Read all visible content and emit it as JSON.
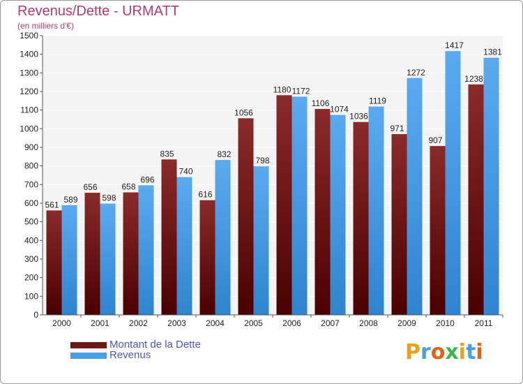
{
  "header": {
    "title": "Revenus/Dette - URMATT",
    "subtitle": "(en milliers d'€)"
  },
  "colors": {
    "dette": "#6e1818",
    "revenus": "#4a9fe3",
    "title": "#b23a74",
    "legend_text": "#4a55cc"
  },
  "legend": {
    "items": [
      {
        "label": "Montant de la Dette",
        "color": "#6e1818"
      },
      {
        "label": "Revenus",
        "color": "#4a9fe3"
      }
    ]
  },
  "logo": {
    "text": "Proxiti",
    "letter_colors": [
      "#e8a020",
      "#4a9fe3",
      "#e86010",
      "#3cb54a",
      "#e8a020",
      "#4a9fe3",
      "#e86010"
    ]
  },
  "chart_data": {
    "type": "bar",
    "title": "Revenus/Dette - URMATT",
    "subtitle": "(en milliers d'€)",
    "categories": [
      "2000",
      "2001",
      "2002",
      "2003",
      "2004",
      "2005",
      "2006",
      "2007",
      "2008",
      "2009",
      "2010",
      "2011"
    ],
    "series": [
      {
        "name": "Montant de la Dette",
        "values": [
          561,
          656,
          658,
          835,
          616,
          1056,
          1180,
          1106,
          1036,
          971,
          907,
          1238
        ]
      },
      {
        "name": "Revenus",
        "values": [
          589,
          598,
          696,
          740,
          832,
          798,
          1172,
          1074,
          1119,
          1272,
          1417,
          1381
        ]
      }
    ],
    "ylim": [
      0,
      1500
    ],
    "yticks": [
      0,
      100,
      200,
      300,
      400,
      500,
      600,
      700,
      800,
      900,
      1000,
      1100,
      1200,
      1300,
      1400,
      1500
    ],
    "grid": true,
    "legend_position": "bottom-left"
  }
}
